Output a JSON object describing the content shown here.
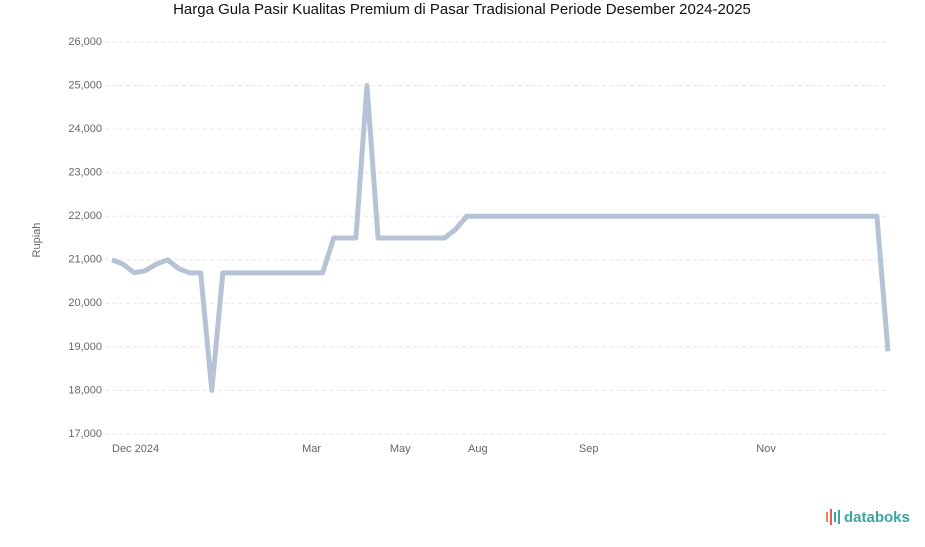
{
  "chart_data": {
    "type": "line",
    "title": "Harga Gula Pasir Kualitas Premium di Pasar Tradisional Periode Desember 2024-2025",
    "y_label": "Rupiah",
    "categories": [
      "Dec 2024",
      null,
      null,
      null,
      null,
      null,
      null,
      null,
      null,
      null,
      null,
      null,
      null,
      null,
      null,
      null,
      null,
      null,
      "Mar",
      null,
      null,
      null,
      null,
      null,
      null,
      null,
      "May",
      null,
      null,
      null,
      null,
      null,
      null,
      "Aug",
      null,
      null,
      null,
      null,
      null,
      null,
      null,
      null,
      null,
      "Sep",
      null,
      null,
      null,
      null,
      null,
      null,
      null,
      null,
      null,
      null,
      null,
      null,
      null,
      null,
      null,
      "Nov",
      null,
      null,
      null,
      null,
      null,
      null,
      null,
      null,
      null,
      null,
      null
    ],
    "series": [
      {
        "name": "Rupiah",
        "color": "#b6c3d6",
        "values": [
          21000,
          20900,
          20700,
          20750,
          20900,
          21000,
          20800,
          20700,
          20700,
          18000,
          20700,
          20700,
          20700,
          20700,
          20700,
          20700,
          20700,
          20700,
          20700,
          20700,
          21500,
          21500,
          21500,
          25000,
          21500,
          21500,
          21500,
          21500,
          21500,
          21500,
          21500,
          21700,
          22000,
          22000,
          22000,
          22000,
          22000,
          22000,
          22000,
          22000,
          22000,
          22000,
          22000,
          22000,
          22000,
          22000,
          22000,
          22000,
          22000,
          22000,
          22000,
          22000,
          22000,
          22000,
          22000,
          22000,
          22000,
          22000,
          22000,
          22000,
          22000,
          22000,
          22000,
          22000,
          22000,
          22000,
          22000,
          22000,
          22000,
          22000,
          18900
        ]
      }
    ],
    "ylim": [
      17000,
      26000
    ],
    "yticks": [
      {
        "value": 17000,
        "label": "17,000"
      },
      {
        "value": 18000,
        "label": "18,000"
      },
      {
        "value": 19000,
        "label": "19,000"
      },
      {
        "value": 20000,
        "label": "20,000"
      },
      {
        "value": 21000,
        "label": "21,000"
      },
      {
        "value": 22000,
        "label": "22,000"
      },
      {
        "value": 23000,
        "label": "23,000"
      },
      {
        "value": 24000,
        "label": "24,000"
      },
      {
        "value": 25000,
        "label": "25,000"
      },
      {
        "value": 26000,
        "label": "26,000"
      }
    ],
    "grid": true,
    "source_logo": "databoks"
  }
}
